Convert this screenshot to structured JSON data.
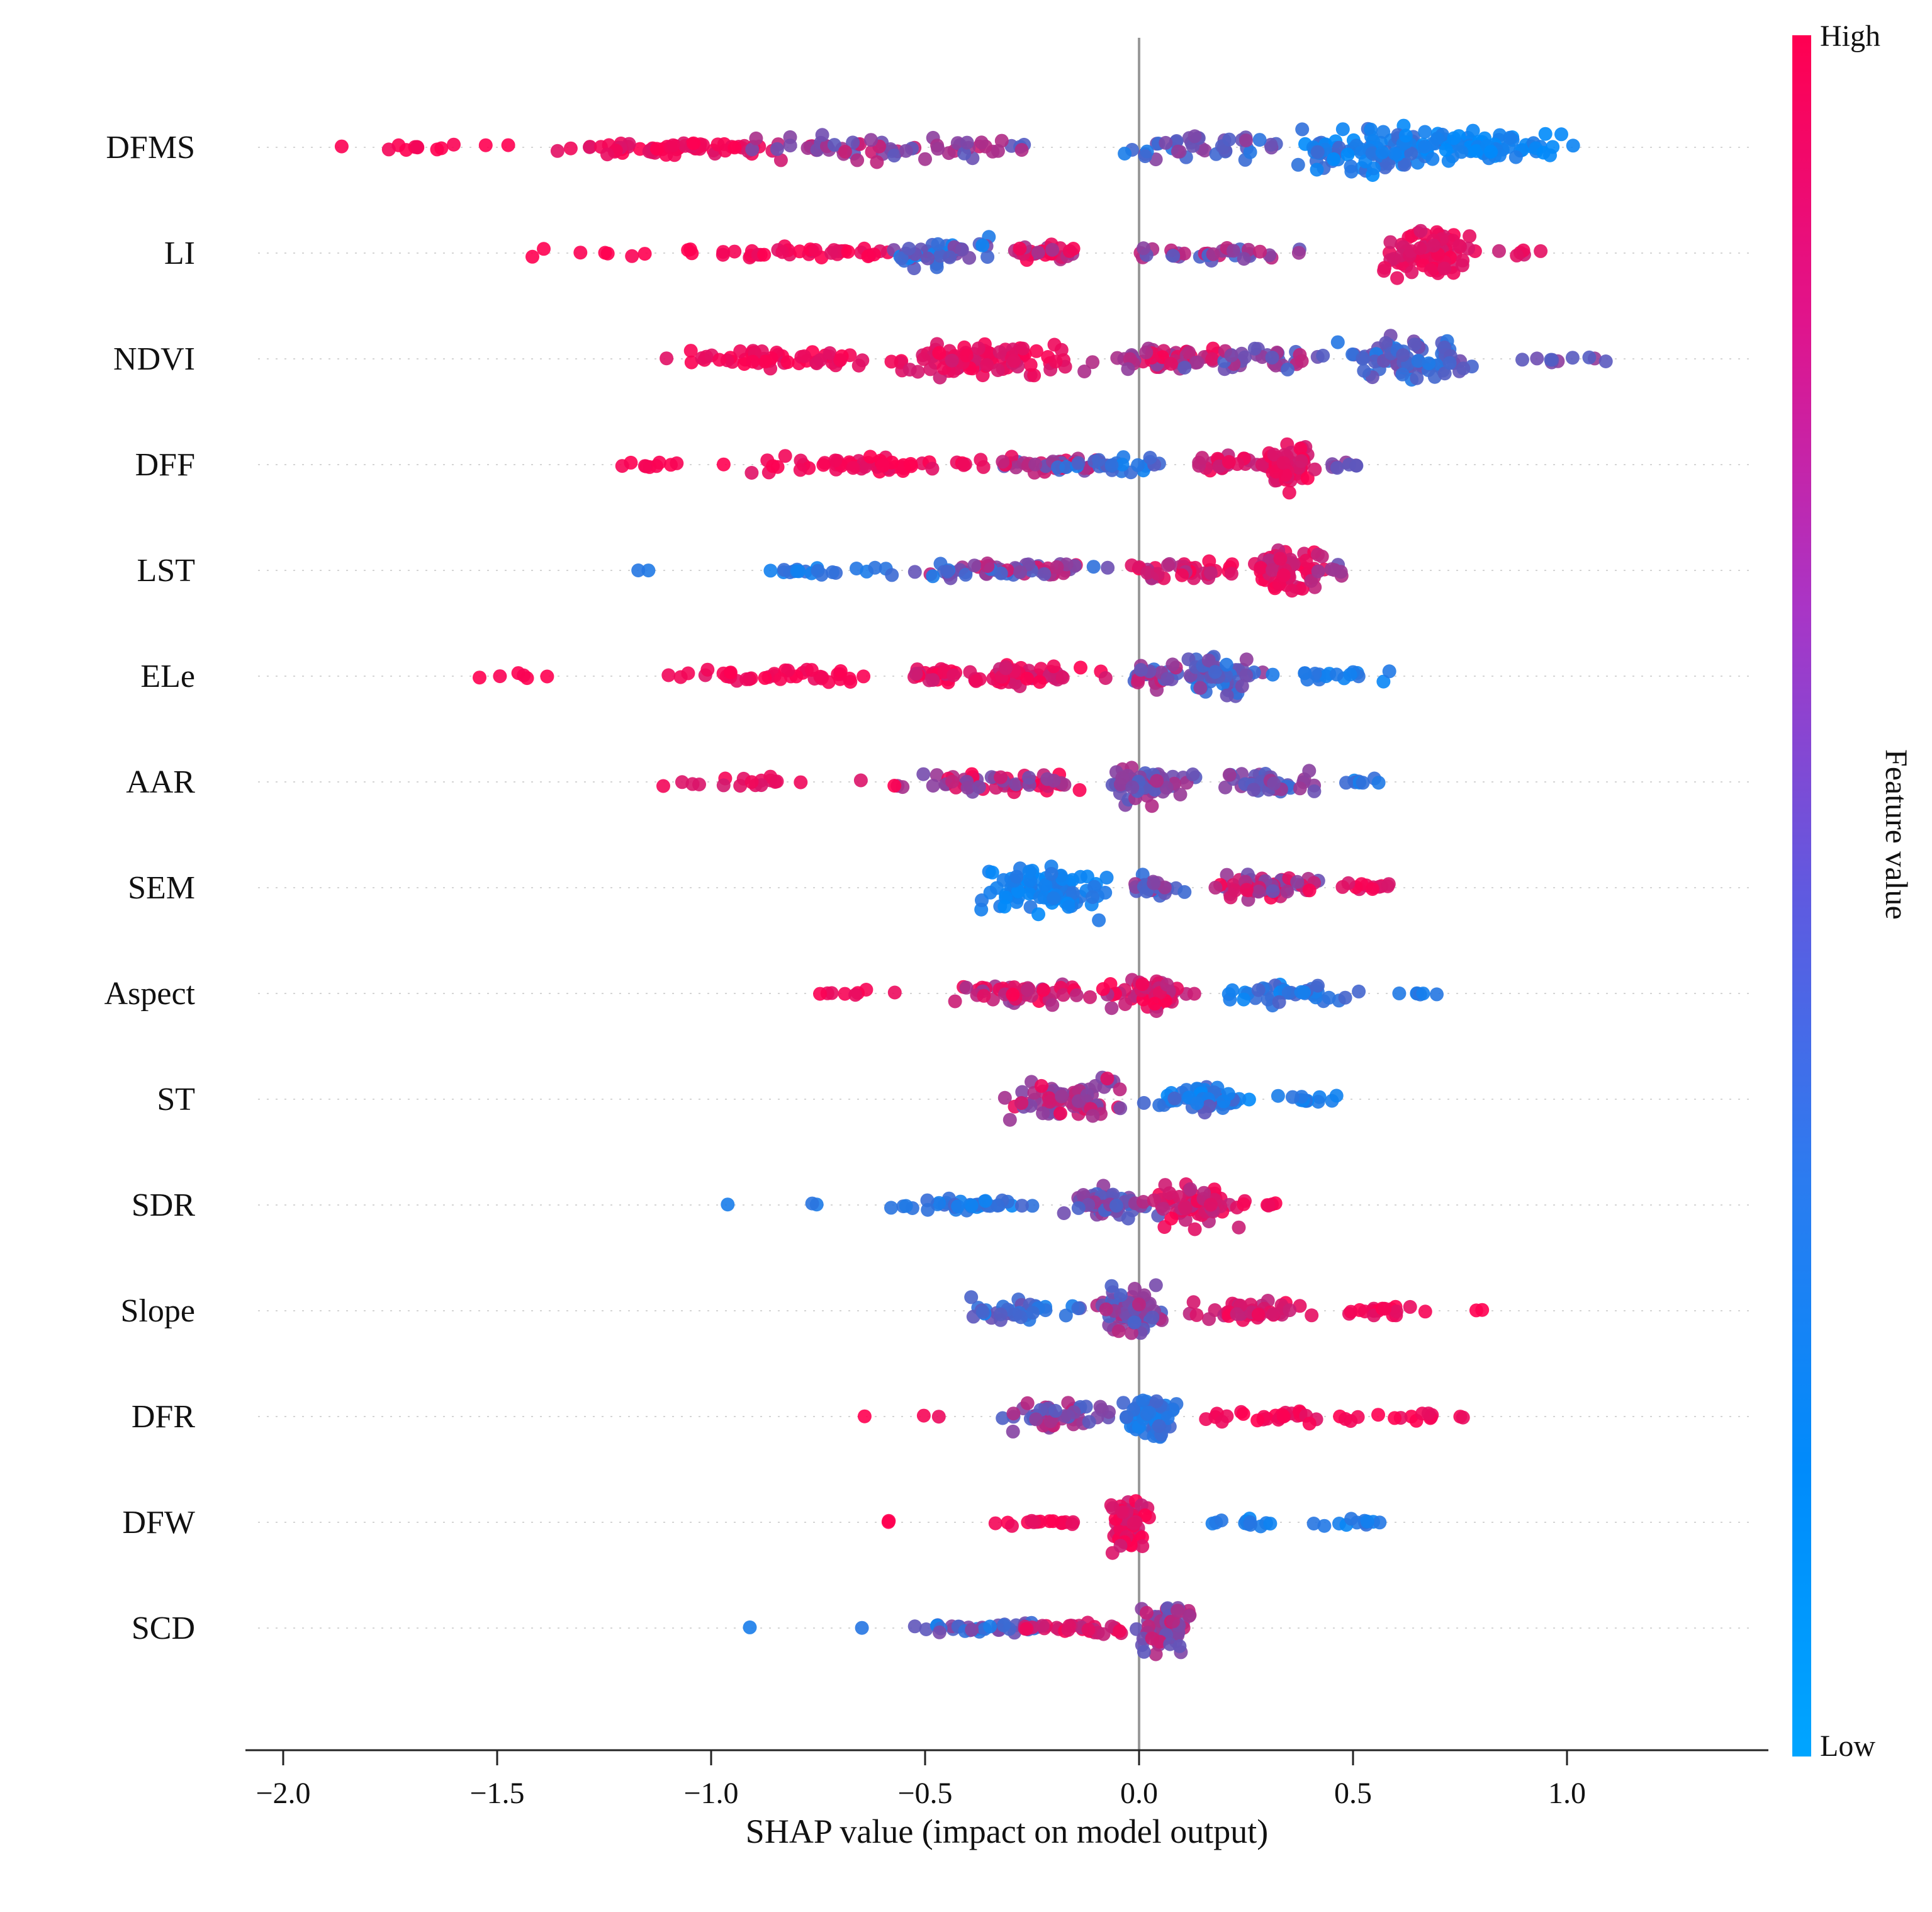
{
  "figure": {
    "xlabel": "SHAP value (impact on model output)"
  },
  "chart_data": {
    "type": "scatter",
    "subtype": "shap-beeswarm-summary",
    "title": "",
    "xlabel": "SHAP value (impact on model output)",
    "ylabel": "",
    "xlim": [
      -2.25,
      1.35
    ],
    "x_ticks": [
      -2.0,
      -1.5,
      -1.0,
      -0.5,
      0.0,
      0.5,
      1.0
    ],
    "zero_line_x": 0.0,
    "grid": "dotted-horizontal",
    "point_radius_px": 11,
    "colorbar": {
      "label": "Feature value",
      "high_label": "High",
      "low_label": "Low",
      "high_color": "#ff0051",
      "low_color": "#008bfb",
      "gradient_stops": [
        "#ff0051",
        "#e0148c",
        "#a935c6",
        "#5f5ae0",
        "#2b7cf0",
        "#008bfb",
        "#00a5ff"
      ],
      "position": "right"
    },
    "cluster_format": [
      "x_min",
      "x_max",
      "count",
      "feature_value_0to1",
      "feature_value_jitter",
      "y_half_thickness_px"
    ],
    "features": [
      {
        "name": "DFMS",
        "clusters": [
          [
            -1.95,
            -1.4,
            12,
            1,
            0.05,
            8
          ],
          [
            -1.4,
            -0.75,
            60,
            0.95,
            0.1,
            20
          ],
          [
            -0.95,
            -0.35,
            50,
            0.6,
            0.25,
            26
          ],
          [
            -0.45,
            -0.2,
            12,
            0.5,
            0.2,
            18
          ],
          [
            -0.05,
            0.35,
            40,
            0.35,
            0.25,
            26
          ],
          [
            0.3,
            0.75,
            90,
            0.12,
            0.15,
            52
          ],
          [
            0.55,
            1.05,
            70,
            0.05,
            0.08,
            34
          ]
        ]
      },
      {
        "name": "LI",
        "clusters": [
          [
            -1.5,
            -1.0,
            10,
            1,
            0.03,
            8
          ],
          [
            -1.0,
            -0.55,
            35,
            0.95,
            0.08,
            16
          ],
          [
            -0.6,
            -0.3,
            40,
            0.3,
            0.25,
            30
          ],
          [
            -0.35,
            -0.1,
            25,
            0.8,
            0.2,
            18
          ],
          [
            -0.1,
            0.45,
            35,
            0.55,
            0.3,
            16
          ],
          [
            0.55,
            0.8,
            80,
            0.9,
            0.08,
            50
          ],
          [
            0.8,
            0.95,
            6,
            0.85,
            0.1,
            10
          ]
        ]
      },
      {
        "name": "NDVI",
        "clusters": [
          [
            -1.15,
            -0.6,
            50,
            0.95,
            0.08,
            20
          ],
          [
            -0.6,
            -0.15,
            90,
            0.9,
            0.1,
            40
          ],
          [
            -0.15,
            0.25,
            50,
            0.75,
            0.25,
            26
          ],
          [
            0.1,
            0.45,
            35,
            0.5,
            0.25,
            30
          ],
          [
            0.45,
            0.85,
            80,
            0.3,
            0.2,
            44
          ],
          [
            0.85,
            1.15,
            10,
            0.45,
            0.15,
            10
          ]
        ]
      },
      {
        "name": "DFF",
        "clusters": [
          [
            -1.3,
            -0.95,
            10,
            1,
            0.04,
            8
          ],
          [
            -0.95,
            -0.35,
            55,
            0.95,
            0.08,
            18
          ],
          [
            -0.35,
            -0.05,
            40,
            0.6,
            0.35,
            18
          ],
          [
            -0.2,
            0.1,
            25,
            0.2,
            0.15,
            16
          ],
          [
            0.1,
            0.3,
            25,
            0.85,
            0.15,
            22
          ],
          [
            0.28,
            0.42,
            55,
            0.9,
            0.1,
            46
          ],
          [
            0.42,
            0.52,
            8,
            0.5,
            0.15,
            14
          ]
        ]
      },
      {
        "name": "LST",
        "clusters": [
          [
            -1.18,
            -1.1,
            2,
            0.1,
            0.05,
            4
          ],
          [
            -0.95,
            -0.55,
            20,
            0.15,
            0.1,
            10
          ],
          [
            -0.55,
            -0.05,
            60,
            0.5,
            0.4,
            18
          ],
          [
            -0.05,
            0.25,
            40,
            0.85,
            0.2,
            20
          ],
          [
            0.25,
            0.45,
            60,
            0.85,
            0.15,
            46
          ],
          [
            0.4,
            0.5,
            6,
            0.6,
            0.2,
            14
          ]
        ]
      },
      {
        "name": "ELe",
        "clusters": [
          [
            -1.6,
            -1.3,
            6,
            1,
            0.03,
            6
          ],
          [
            -1.15,
            -0.6,
            40,
            0.95,
            0.07,
            16
          ],
          [
            -0.6,
            -0.05,
            70,
            0.9,
            0.12,
            22
          ],
          [
            -0.05,
            0.1,
            25,
            0.5,
            0.3,
            26
          ],
          [
            0.05,
            0.3,
            60,
            0.35,
            0.25,
            42
          ],
          [
            0.3,
            0.6,
            18,
            0.1,
            0.08,
            12
          ]
        ]
      },
      {
        "name": "AAR",
        "clusters": [
          [
            -1.15,
            -0.6,
            18,
            0.9,
            0.08,
            10
          ],
          [
            -0.6,
            -0.1,
            55,
            0.75,
            0.3,
            18
          ],
          [
            -0.1,
            0.15,
            60,
            0.5,
            0.2,
            44
          ],
          [
            0.15,
            0.45,
            40,
            0.4,
            0.25,
            26
          ],
          [
            0.45,
            0.58,
            8,
            0.15,
            0.1,
            10
          ]
        ]
      },
      {
        "name": "SEM",
        "clusters": [
          [
            -0.38,
            -0.05,
            90,
            0.08,
            0.08,
            52
          ],
          [
            -0.05,
            0.12,
            25,
            0.4,
            0.25,
            22
          ],
          [
            0.12,
            0.45,
            55,
            0.7,
            0.3,
            30
          ],
          [
            0.45,
            0.62,
            12,
            0.9,
            0.1,
            12
          ]
        ]
      },
      {
        "name": "Aspect",
        "clusters": [
          [
            -0.85,
            -0.55,
            8,
            0.95,
            0.05,
            8
          ],
          [
            -0.45,
            -0.1,
            45,
            0.8,
            0.25,
            26
          ],
          [
            -0.1,
            0.15,
            55,
            0.85,
            0.2,
            38
          ],
          [
            0.15,
            0.55,
            40,
            0.15,
            0.15,
            22
          ],
          [
            0.55,
            0.75,
            6,
            0.1,
            0.1,
            8
          ]
        ]
      },
      {
        "name": "ST",
        "clusters": [
          [
            -0.32,
            -0.02,
            70,
            0.7,
            0.25,
            40
          ],
          [
            -0.02,
            0.3,
            50,
            0.2,
            0.2,
            30
          ],
          [
            0.3,
            0.48,
            12,
            0.12,
            0.1,
            10
          ]
        ]
      },
      {
        "name": "SDR",
        "clusters": [
          [
            -0.98,
            -0.9,
            1,
            0.1,
            0,
            4
          ],
          [
            -0.78,
            -0.72,
            2,
            0.15,
            0.05,
            4
          ],
          [
            -0.65,
            -0.2,
            35,
            0.15,
            0.12,
            12
          ],
          [
            -0.2,
            0.05,
            55,
            0.45,
            0.2,
            32
          ],
          [
            0.0,
            0.28,
            70,
            0.85,
            0.15,
            46
          ],
          [
            0.28,
            0.35,
            4,
            0.95,
            0.05,
            8
          ]
        ]
      },
      {
        "name": "Slope",
        "clusters": [
          [
            -0.42,
            -0.12,
            35,
            0.25,
            0.2,
            22
          ],
          [
            -0.12,
            0.08,
            70,
            0.5,
            0.25,
            48
          ],
          [
            0.08,
            0.45,
            45,
            0.85,
            0.15,
            22
          ],
          [
            0.45,
            0.7,
            18,
            0.95,
            0.07,
            12
          ],
          [
            0.78,
            0.82,
            2,
            1,
            0,
            4
          ]
        ]
      },
      {
        "name": "DFR",
        "clusters": [
          [
            -0.68,
            -0.62,
            1,
            1,
            0,
            4
          ],
          [
            -0.52,
            -0.46,
            2,
            0.95,
            0.05,
            4
          ],
          [
            -0.32,
            -0.05,
            55,
            0.55,
            0.3,
            32
          ],
          [
            -0.05,
            0.1,
            60,
            0.15,
            0.12,
            44
          ],
          [
            0.12,
            0.55,
            30,
            0.95,
            0.08,
            14
          ],
          [
            0.55,
            0.82,
            12,
            0.95,
            0.08,
            8
          ]
        ]
      },
      {
        "name": "DFW",
        "clusters": [
          [
            -0.62,
            -0.56,
            2,
            1,
            0,
            4
          ],
          [
            -0.38,
            -0.1,
            15,
            0.95,
            0.06,
            8
          ],
          [
            -0.08,
            0.04,
            60,
            0.9,
            0.12,
            56
          ],
          [
            0.15,
            0.35,
            12,
            0.1,
            0.08,
            10
          ],
          [
            0.4,
            0.62,
            12,
            0.12,
            0.1,
            10
          ]
        ]
      },
      {
        "name": "SCD",
        "clusters": [
          [
            -0.92,
            -0.86,
            1,
            0.1,
            0,
            4
          ],
          [
            -0.68,
            -0.62,
            1,
            0.15,
            0,
            4
          ],
          [
            -0.55,
            -0.15,
            35,
            0.3,
            0.25,
            12
          ],
          [
            -0.3,
            -0.02,
            30,
            0.85,
            0.15,
            14
          ],
          [
            -0.02,
            0.15,
            60,
            0.6,
            0.25,
            48
          ]
        ]
      }
    ]
  }
}
